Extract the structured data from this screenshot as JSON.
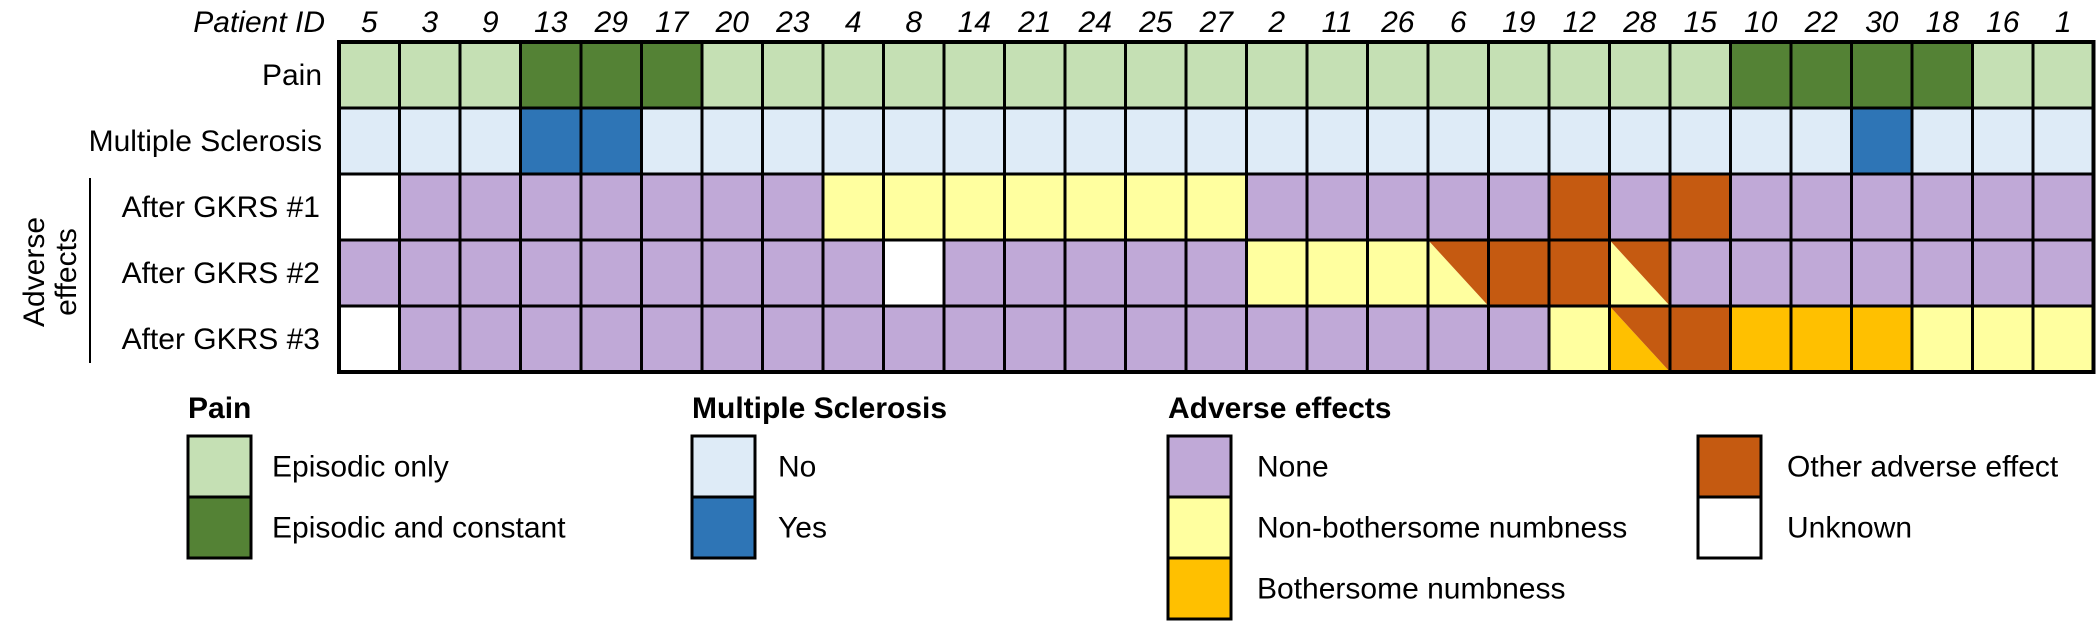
{
  "chart_data": {
    "type": "heatmap",
    "header_label": "Patient ID",
    "patient_ids": [
      "5",
      "3",
      "9",
      "13",
      "29",
      "17",
      "20",
      "23",
      "4",
      "8",
      "14",
      "21",
      "24",
      "25",
      "27",
      "2",
      "11",
      "26",
      "6",
      "19",
      "12",
      "28",
      "15",
      "10",
      "22",
      "30",
      "18",
      "16",
      "1"
    ],
    "group_label": [
      "Adverse",
      "effects"
    ],
    "rows": [
      {
        "label": "Pain",
        "category": "pain",
        "values": [
          "E",
          "E",
          "E",
          "C",
          "C",
          "C",
          "E",
          "E",
          "E",
          "E",
          "E",
          "E",
          "E",
          "E",
          "E",
          "E",
          "E",
          "E",
          "E",
          "E",
          "E",
          "E",
          "E",
          "C",
          "C",
          "C",
          "C",
          "E",
          "E"
        ]
      },
      {
        "label": "Multiple Sclerosis",
        "category": "ms",
        "values": [
          "N",
          "N",
          "N",
          "Y",
          "Y",
          "N",
          "N",
          "N",
          "N",
          "N",
          "N",
          "N",
          "N",
          "N",
          "N",
          "N",
          "N",
          "N",
          "N",
          "N",
          "N",
          "N",
          "N",
          "N",
          "N",
          "Y",
          "N",
          "N",
          "N"
        ]
      },
      {
        "label": "After GKRS #1",
        "category": "ae",
        "values": [
          "U",
          "None",
          "None",
          "None",
          "None",
          "None",
          "None",
          "None",
          "NB",
          "NB",
          "NB",
          "NB",
          "NB",
          "NB",
          "NB",
          "None",
          "None",
          "None",
          "None",
          "None",
          "O",
          "None",
          "O",
          "None",
          "None",
          "None",
          "None",
          "None",
          "None"
        ]
      },
      {
        "label": "After GKRS #2",
        "category": "ae",
        "values": [
          "None",
          "None",
          "None",
          "None",
          "None",
          "None",
          "None",
          "None",
          "None",
          "U",
          "None",
          "None",
          "None",
          "None",
          "None",
          "NB",
          "NB",
          "NB",
          "NB/O",
          "O",
          "O",
          "NB/O",
          "None",
          "None",
          "None",
          "None",
          "None",
          "None",
          "None"
        ]
      },
      {
        "label": "After GKRS #3",
        "category": "ae",
        "values": [
          "U",
          "None",
          "None",
          "None",
          "None",
          "None",
          "None",
          "None",
          "None",
          "None",
          "None",
          "None",
          "None",
          "None",
          "None",
          "None",
          "None",
          "None",
          "None",
          "None",
          "NB",
          "B/O",
          "O",
          "B",
          "B",
          "B",
          "NB",
          "NB",
          "NB"
        ]
      }
    ],
    "legend": {
      "pain": {
        "title": "Pain",
        "items": [
          {
            "code": "E",
            "label": "Episodic only",
            "color": "#c5e0b4"
          },
          {
            "code": "C",
            "label": "Episodic and constant",
            "color": "#548235"
          }
        ]
      },
      "ms": {
        "title": "Multiple Sclerosis",
        "items": [
          {
            "code": "N",
            "label": "No",
            "color": "#deebf7"
          },
          {
            "code": "Y",
            "label": "Yes",
            "color": "#2e75b6"
          }
        ]
      },
      "ae": {
        "title": "Adverse effects",
        "items": [
          {
            "code": "None",
            "label": "None",
            "color": "#c0a9d7"
          },
          {
            "code": "NB",
            "label": "Non-bothersome numbness",
            "color": "#ffff9f"
          },
          {
            "code": "B",
            "label": "Bothersome numbness",
            "color": "#ffc000"
          },
          {
            "code": "O",
            "label": "Other adverse effect",
            "color": "#c55a11"
          },
          {
            "code": "U",
            "label": "Unknown",
            "color": "#ffffff"
          }
        ]
      }
    }
  }
}
